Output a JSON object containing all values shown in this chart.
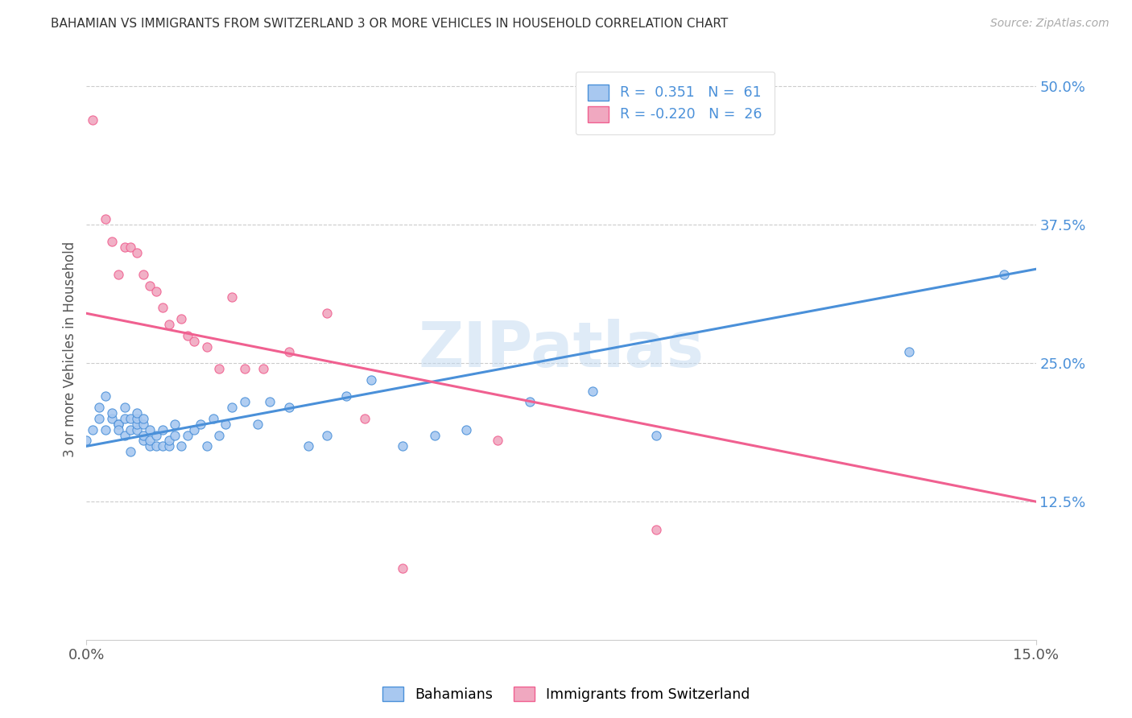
{
  "title": "BAHAMIAN VS IMMIGRANTS FROM SWITZERLAND 3 OR MORE VEHICLES IN HOUSEHOLD CORRELATION CHART",
  "source": "Source: ZipAtlas.com",
  "ylabel_label": "3 or more Vehicles in Household",
  "legend_entry1": "R =  0.351   N =  61",
  "legend_entry2": "R = -0.220   N =  26",
  "color_blue": "#a8c8f0",
  "color_pink": "#f0a8c0",
  "color_blue_line": "#4a90d9",
  "color_pink_line": "#f06090",
  "color_legend_text": "#4a90d9",
  "watermark": "ZIPatlas",
  "blue_scatter_x": [
    0.0,
    0.001,
    0.002,
    0.002,
    0.003,
    0.003,
    0.004,
    0.004,
    0.005,
    0.005,
    0.005,
    0.006,
    0.006,
    0.006,
    0.007,
    0.007,
    0.007,
    0.008,
    0.008,
    0.008,
    0.008,
    0.009,
    0.009,
    0.009,
    0.009,
    0.01,
    0.01,
    0.01,
    0.011,
    0.011,
    0.012,
    0.012,
    0.013,
    0.013,
    0.014,
    0.014,
    0.015,
    0.016,
    0.017,
    0.018,
    0.019,
    0.02,
    0.021,
    0.022,
    0.023,
    0.025,
    0.027,
    0.029,
    0.032,
    0.035,
    0.038,
    0.041,
    0.045,
    0.05,
    0.055,
    0.06,
    0.07,
    0.08,
    0.09,
    0.13,
    0.145
  ],
  "blue_scatter_y": [
    0.18,
    0.19,
    0.2,
    0.21,
    0.19,
    0.22,
    0.2,
    0.205,
    0.195,
    0.195,
    0.19,
    0.185,
    0.2,
    0.21,
    0.17,
    0.19,
    0.2,
    0.19,
    0.195,
    0.2,
    0.205,
    0.18,
    0.185,
    0.195,
    0.2,
    0.175,
    0.18,
    0.19,
    0.175,
    0.185,
    0.175,
    0.19,
    0.175,
    0.18,
    0.185,
    0.195,
    0.175,
    0.185,
    0.19,
    0.195,
    0.175,
    0.2,
    0.185,
    0.195,
    0.21,
    0.215,
    0.195,
    0.215,
    0.21,
    0.175,
    0.185,
    0.22,
    0.235,
    0.175,
    0.185,
    0.19,
    0.215,
    0.225,
    0.185,
    0.26,
    0.33
  ],
  "pink_scatter_x": [
    0.001,
    0.003,
    0.004,
    0.005,
    0.006,
    0.007,
    0.008,
    0.009,
    0.01,
    0.011,
    0.012,
    0.013,
    0.015,
    0.016,
    0.017,
    0.019,
    0.021,
    0.023,
    0.025,
    0.028,
    0.032,
    0.038,
    0.044,
    0.05,
    0.065,
    0.09
  ],
  "pink_scatter_y": [
    0.47,
    0.38,
    0.36,
    0.33,
    0.355,
    0.355,
    0.35,
    0.33,
    0.32,
    0.315,
    0.3,
    0.285,
    0.29,
    0.275,
    0.27,
    0.265,
    0.245,
    0.31,
    0.245,
    0.245,
    0.26,
    0.295,
    0.2,
    0.065,
    0.18,
    0.1
  ],
  "xlim": [
    0.0,
    0.15
  ],
  "ylim": [
    0.0,
    0.525
  ],
  "yticks": [
    0.125,
    0.25,
    0.375,
    0.5
  ],
  "ytick_labels": [
    "12.5%",
    "25.0%",
    "37.5%",
    "50.0%"
  ],
  "xticks": [
    0.0,
    0.15
  ],
  "xtick_labels": [
    "0.0%",
    "15.0%"
  ],
  "blue_line_x0": 0.0,
  "blue_line_x1": 0.15,
  "blue_line_y0": 0.175,
  "blue_line_y1": 0.335,
  "pink_line_x0": 0.0,
  "pink_line_x1": 0.15,
  "pink_line_y0": 0.295,
  "pink_line_y1": 0.125
}
